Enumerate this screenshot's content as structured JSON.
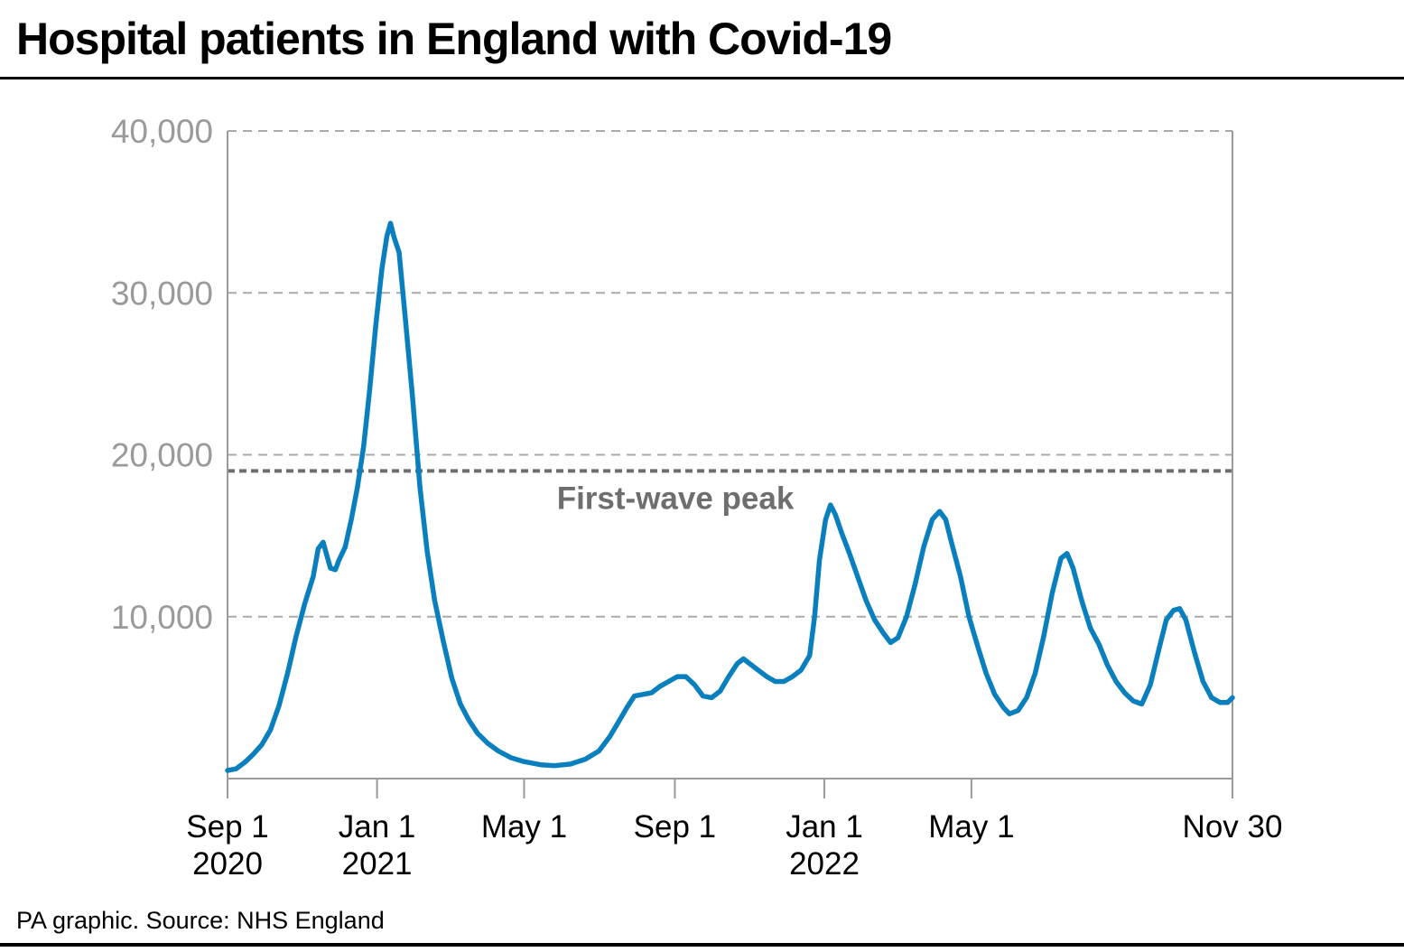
{
  "title": "Hospital patients in England with Covid-19",
  "source": "PA graphic. Source: NHS England",
  "colors": {
    "series": "#0a7fbd",
    "grid": "#aaaaaa",
    "axis": "#9a9a9a",
    "reference": "#6e6e6e"
  },
  "chart_data": {
    "type": "line",
    "title": "Hospital patients in England with Covid-19",
    "xlabel": "",
    "ylabel": "",
    "ylim": [
      0,
      40000
    ],
    "yticks": [
      {
        "value": 10000,
        "label": "10,000"
      },
      {
        "value": 20000,
        "label": "20,000"
      },
      {
        "value": 30000,
        "label": "30,000"
      },
      {
        "value": 40000,
        "label": "40,000"
      }
    ],
    "xlim": [
      "2020-09-01",
      "2022-11-30"
    ],
    "xticks": [
      {
        "date": "2020-09-01",
        "label": "Sep 1",
        "year": "2020"
      },
      {
        "date": "2021-01-01",
        "label": "Jan 1",
        "year": "2021"
      },
      {
        "date": "2021-05-01",
        "label": "May 1",
        "year": ""
      },
      {
        "date": "2021-09-01",
        "label": "Sep 1",
        "year": ""
      },
      {
        "date": "2022-01-01",
        "label": "Jan 1",
        "year": "2022"
      },
      {
        "date": "2022-05-01",
        "label": "May 1",
        "year": ""
      },
      {
        "date": "2022-11-30",
        "label": "Nov 30",
        "year": ""
      }
    ],
    "grid": "horizontal dashed",
    "reference_line": {
      "value": 19000,
      "label": "First-wave peak"
    },
    "series": [
      {
        "points": [
          [
            "2020-09-01",
            500
          ],
          [
            "2020-09-08",
            600
          ],
          [
            "2020-09-15",
            1000
          ],
          [
            "2020-09-22",
            1500
          ],
          [
            "2020-09-29",
            2100
          ],
          [
            "2020-10-06",
            3000
          ],
          [
            "2020-10-13",
            4500
          ],
          [
            "2020-10-20",
            6500
          ],
          [
            "2020-10-27",
            8800
          ],
          [
            "2020-11-03",
            10800
          ],
          [
            "2020-11-10",
            12500
          ],
          [
            "2020-11-14",
            14200
          ],
          [
            "2020-11-18",
            14600
          ],
          [
            "2020-11-21",
            13800
          ],
          [
            "2020-11-24",
            13000
          ],
          [
            "2020-11-28",
            12900
          ],
          [
            "2020-12-01",
            13500
          ],
          [
            "2020-12-06",
            14300
          ],
          [
            "2020-12-11",
            16000
          ],
          [
            "2020-12-16",
            18000
          ],
          [
            "2020-12-21",
            20500
          ],
          [
            "2020-12-26",
            24000
          ],
          [
            "2020-12-31",
            28000
          ],
          [
            "2021-01-05",
            31500
          ],
          [
            "2021-01-09",
            33500
          ],
          [
            "2021-01-12",
            34300
          ],
          [
            "2021-01-15",
            33400
          ],
          [
            "2021-01-19",
            32500
          ],
          [
            "2021-01-24",
            28500
          ],
          [
            "2021-01-30",
            23500
          ],
          [
            "2021-02-05",
            18000
          ],
          [
            "2021-02-11",
            14000
          ],
          [
            "2021-02-17",
            11000
          ],
          [
            "2021-02-24",
            8500
          ],
          [
            "2021-03-03",
            6200
          ],
          [
            "2021-03-10",
            4600
          ],
          [
            "2021-03-17",
            3600
          ],
          [
            "2021-03-24",
            2800
          ],
          [
            "2021-04-01",
            2200
          ],
          [
            "2021-04-10",
            1700
          ],
          [
            "2021-04-20",
            1300
          ],
          [
            "2021-05-01",
            1050
          ],
          [
            "2021-05-15",
            850
          ],
          [
            "2021-05-26",
            800
          ],
          [
            "2021-06-08",
            900
          ],
          [
            "2021-06-20",
            1200
          ],
          [
            "2021-07-01",
            1700
          ],
          [
            "2021-07-10",
            2600
          ],
          [
            "2021-07-17",
            3500
          ],
          [
            "2021-07-24",
            4400
          ],
          [
            "2021-07-30",
            5100
          ],
          [
            "2021-08-06",
            5200
          ],
          [
            "2021-08-13",
            5300
          ],
          [
            "2021-08-20",
            5700
          ],
          [
            "2021-08-27",
            6000
          ],
          [
            "2021-09-03",
            6300
          ],
          [
            "2021-09-10",
            6300
          ],
          [
            "2021-09-17",
            5800
          ],
          [
            "2021-09-24",
            5100
          ],
          [
            "2021-10-01",
            5000
          ],
          [
            "2021-10-08",
            5400
          ],
          [
            "2021-10-15",
            6300
          ],
          [
            "2021-10-22",
            7100
          ],
          [
            "2021-10-27",
            7400
          ],
          [
            "2021-11-01",
            7100
          ],
          [
            "2021-11-08",
            6700
          ],
          [
            "2021-11-15",
            6300
          ],
          [
            "2021-11-22",
            6000
          ],
          [
            "2021-11-29",
            6000
          ],
          [
            "2021-12-06",
            6300
          ],
          [
            "2021-12-13",
            6700
          ],
          [
            "2021-12-20",
            7600
          ],
          [
            "2021-12-24",
            10000
          ],
          [
            "2021-12-28",
            13500
          ],
          [
            "2022-01-02",
            16000
          ],
          [
            "2022-01-06",
            16900
          ],
          [
            "2022-01-10",
            16300
          ],
          [
            "2022-01-15",
            15200
          ],
          [
            "2022-01-21",
            14000
          ],
          [
            "2022-01-28",
            12500
          ],
          [
            "2022-02-04",
            11000
          ],
          [
            "2022-02-11",
            9800
          ],
          [
            "2022-02-18",
            9000
          ],
          [
            "2022-02-24",
            8400
          ],
          [
            "2022-03-02",
            8700
          ],
          [
            "2022-03-09",
            10000
          ],
          [
            "2022-03-16",
            12000
          ],
          [
            "2022-03-23",
            14300
          ],
          [
            "2022-03-30",
            16000
          ],
          [
            "2022-04-05",
            16500
          ],
          [
            "2022-04-10",
            16000
          ],
          [
            "2022-04-15",
            14500
          ],
          [
            "2022-04-22",
            12500
          ],
          [
            "2022-04-29",
            10000
          ],
          [
            "2022-05-06",
            8200
          ],
          [
            "2022-05-13",
            6500
          ],
          [
            "2022-05-20",
            5200
          ],
          [
            "2022-05-27",
            4400
          ],
          [
            "2022-06-01",
            4000
          ],
          [
            "2022-06-08",
            4200
          ],
          [
            "2022-06-15",
            5000
          ],
          [
            "2022-06-22",
            6500
          ],
          [
            "2022-06-29",
            8800
          ],
          [
            "2022-07-06",
            11500
          ],
          [
            "2022-07-13",
            13600
          ],
          [
            "2022-07-18",
            13900
          ],
          [
            "2022-07-23",
            13000
          ],
          [
            "2022-07-30",
            11000
          ],
          [
            "2022-08-06",
            9300
          ],
          [
            "2022-08-13",
            8300
          ],
          [
            "2022-08-20",
            7000
          ],
          [
            "2022-08-27",
            6000
          ],
          [
            "2022-09-03",
            5300
          ],
          [
            "2022-09-10",
            4800
          ],
          [
            "2022-09-17",
            4600
          ],
          [
            "2022-09-24",
            5800
          ],
          [
            "2022-10-01",
            8000
          ],
          [
            "2022-10-07",
            9800
          ],
          [
            "2022-10-13",
            10400
          ],
          [
            "2022-10-18",
            10500
          ],
          [
            "2022-10-23",
            9800
          ],
          [
            "2022-10-30",
            7800
          ],
          [
            "2022-11-06",
            6000
          ],
          [
            "2022-11-13",
            5000
          ],
          [
            "2022-11-20",
            4700
          ],
          [
            "2022-11-26",
            4700
          ],
          [
            "2022-11-30",
            5000
          ]
        ]
      }
    ]
  }
}
